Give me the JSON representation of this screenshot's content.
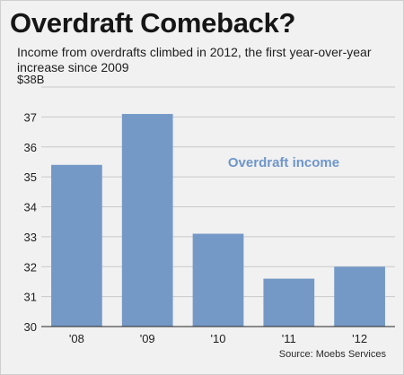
{
  "chart_data": {
    "type": "bar",
    "title": "Overdraft Comeback?",
    "subtitle": "Income from overdrafts climbed in 2012, the first year-over-year increase since 2009",
    "categories": [
      "'08",
      "'09",
      "'10",
      "'11",
      "'12"
    ],
    "series": [
      {
        "name": "Overdraft income",
        "values": [
          35.4,
          37.1,
          33.1,
          31.6,
          32.0
        ]
      }
    ],
    "ylim": [
      30,
      38
    ],
    "yticks": [
      30,
      31,
      32,
      33,
      34,
      35,
      36,
      37,
      38
    ],
    "ytick_labels": [
      "30",
      "31",
      "32",
      "33",
      "34",
      "35",
      "36",
      "37",
      "$38B"
    ],
    "grid": true,
    "legend_placement": "top-right",
    "source": "Source: Moebs Services",
    "colors": {
      "bar": "#7599c7",
      "label": "#6f96c9"
    }
  }
}
